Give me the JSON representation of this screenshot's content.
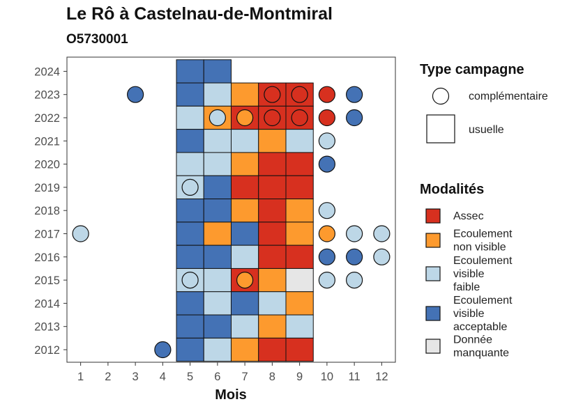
{
  "title": "Le Rô à Castelnau-de-Montmiral",
  "subtitle": "O5730001",
  "chart_data": {
    "type": "heatmap",
    "xlabel": "Mois",
    "ylabel": "",
    "x_ticks": [
      "1",
      "2",
      "3",
      "4",
      "5",
      "6",
      "7",
      "8",
      "9",
      "10",
      "11",
      "12"
    ],
    "y_ticks": [
      "2012",
      "2013",
      "2014",
      "2015",
      "2016",
      "2017",
      "2018",
      "2019",
      "2020",
      "2021",
      "2022",
      "2023",
      "2024"
    ],
    "xlim": [
      0.5,
      12.5
    ],
    "ylim": [
      2011.5,
      2024.5
    ],
    "grid": false,
    "legend_position": "right",
    "colors": {
      "assec": "#d7301f",
      "non_visible": "#fd9a2e",
      "faible": "#bdd7e7",
      "acceptable": "#4472b5",
      "manquante": "#e6e6e6"
    },
    "shape_legend": {
      "title": "Type campagne",
      "items": [
        {
          "label": "complémentaire",
          "shape": "circle"
        },
        {
          "label": "usuelle",
          "shape": "square"
        }
      ]
    },
    "color_legend": {
      "title": "Modalités",
      "items": [
        {
          "key": "assec",
          "lines": [
            "Assec"
          ]
        },
        {
          "key": "non_visible",
          "lines": [
            "Ecoulement",
            "non visible"
          ]
        },
        {
          "key": "faible",
          "lines": [
            "Ecoulement",
            "visible",
            "faible"
          ]
        },
        {
          "key": "acceptable",
          "lines": [
            "Ecoulement",
            "visible",
            "acceptable"
          ]
        },
        {
          "key": "manquante",
          "lines": [
            "Donnée",
            "manquante"
          ]
        }
      ]
    },
    "usuelle": [
      {
        "year": 2024,
        "months": {
          "5": "acceptable",
          "6": "acceptable"
        }
      },
      {
        "year": 2023,
        "months": {
          "5": "acceptable",
          "6": "faible",
          "7": "non_visible",
          "8": "assec",
          "9": "assec"
        }
      },
      {
        "year": 2022,
        "months": {
          "5": "faible",
          "6": "non_visible",
          "7": "assec",
          "8": "assec",
          "9": "assec"
        }
      },
      {
        "year": 2021,
        "months": {
          "5": "acceptable",
          "6": "faible",
          "7": "faible",
          "8": "non_visible",
          "9": "faible"
        }
      },
      {
        "year": 2020,
        "months": {
          "5": "faible",
          "6": "faible",
          "7": "non_visible",
          "8": "assec",
          "9": "assec"
        }
      },
      {
        "year": 2019,
        "months": {
          "5": "faible",
          "6": "acceptable",
          "7": "assec",
          "8": "assec",
          "9": "assec"
        }
      },
      {
        "year": 2018,
        "months": {
          "5": "acceptable",
          "6": "acceptable",
          "7": "non_visible",
          "8": "assec",
          "9": "non_visible"
        }
      },
      {
        "year": 2017,
        "months": {
          "5": "acceptable",
          "6": "non_visible",
          "7": "acceptable",
          "8": "assec",
          "9": "non_visible"
        }
      },
      {
        "year": 2016,
        "months": {
          "5": "acceptable",
          "6": "acceptable",
          "7": "faible",
          "8": "assec",
          "9": "assec"
        }
      },
      {
        "year": 2015,
        "months": {
          "5": "faible",
          "6": "faible",
          "7": "assec",
          "8": "non_visible",
          "9": "manquante"
        }
      },
      {
        "year": 2014,
        "months": {
          "5": "acceptable",
          "6": "faible",
          "7": "acceptable",
          "8": "faible",
          "9": "non_visible"
        }
      },
      {
        "year": 2013,
        "months": {
          "5": "acceptable",
          "6": "acceptable",
          "7": "faible",
          "8": "non_visible",
          "9": "faible"
        }
      },
      {
        "year": 2012,
        "months": {
          "5": "acceptable",
          "6": "faible",
          "7": "non_visible",
          "8": "assec",
          "9": "assec"
        }
      }
    ],
    "complementaire": [
      {
        "year": 2023,
        "months": {
          "3": "acceptable",
          "8": "assec",
          "9": "assec",
          "10": "assec",
          "11": "acceptable"
        }
      },
      {
        "year": 2022,
        "months": {
          "6": "faible",
          "7": "non_visible",
          "8": "assec",
          "9": "assec",
          "10": "assec",
          "11": "acceptable"
        }
      },
      {
        "year": 2021,
        "months": {
          "10": "faible"
        }
      },
      {
        "year": 2020,
        "months": {
          "10": "acceptable"
        }
      },
      {
        "year": 2019,
        "months": {
          "5": "faible"
        }
      },
      {
        "year": 2018,
        "months": {
          "10": "faible"
        }
      },
      {
        "year": 2017,
        "months": {
          "1": "faible",
          "10": "non_visible",
          "11": "faible",
          "12": "faible"
        }
      },
      {
        "year": 2016,
        "months": {
          "10": "acceptable",
          "11": "acceptable",
          "12": "faible"
        }
      },
      {
        "year": 2015,
        "months": {
          "5": "faible",
          "7": "non_visible",
          "10": "faible",
          "11": "faible"
        }
      },
      {
        "year": 2012,
        "months": {
          "4": "acceptable"
        }
      }
    ]
  }
}
